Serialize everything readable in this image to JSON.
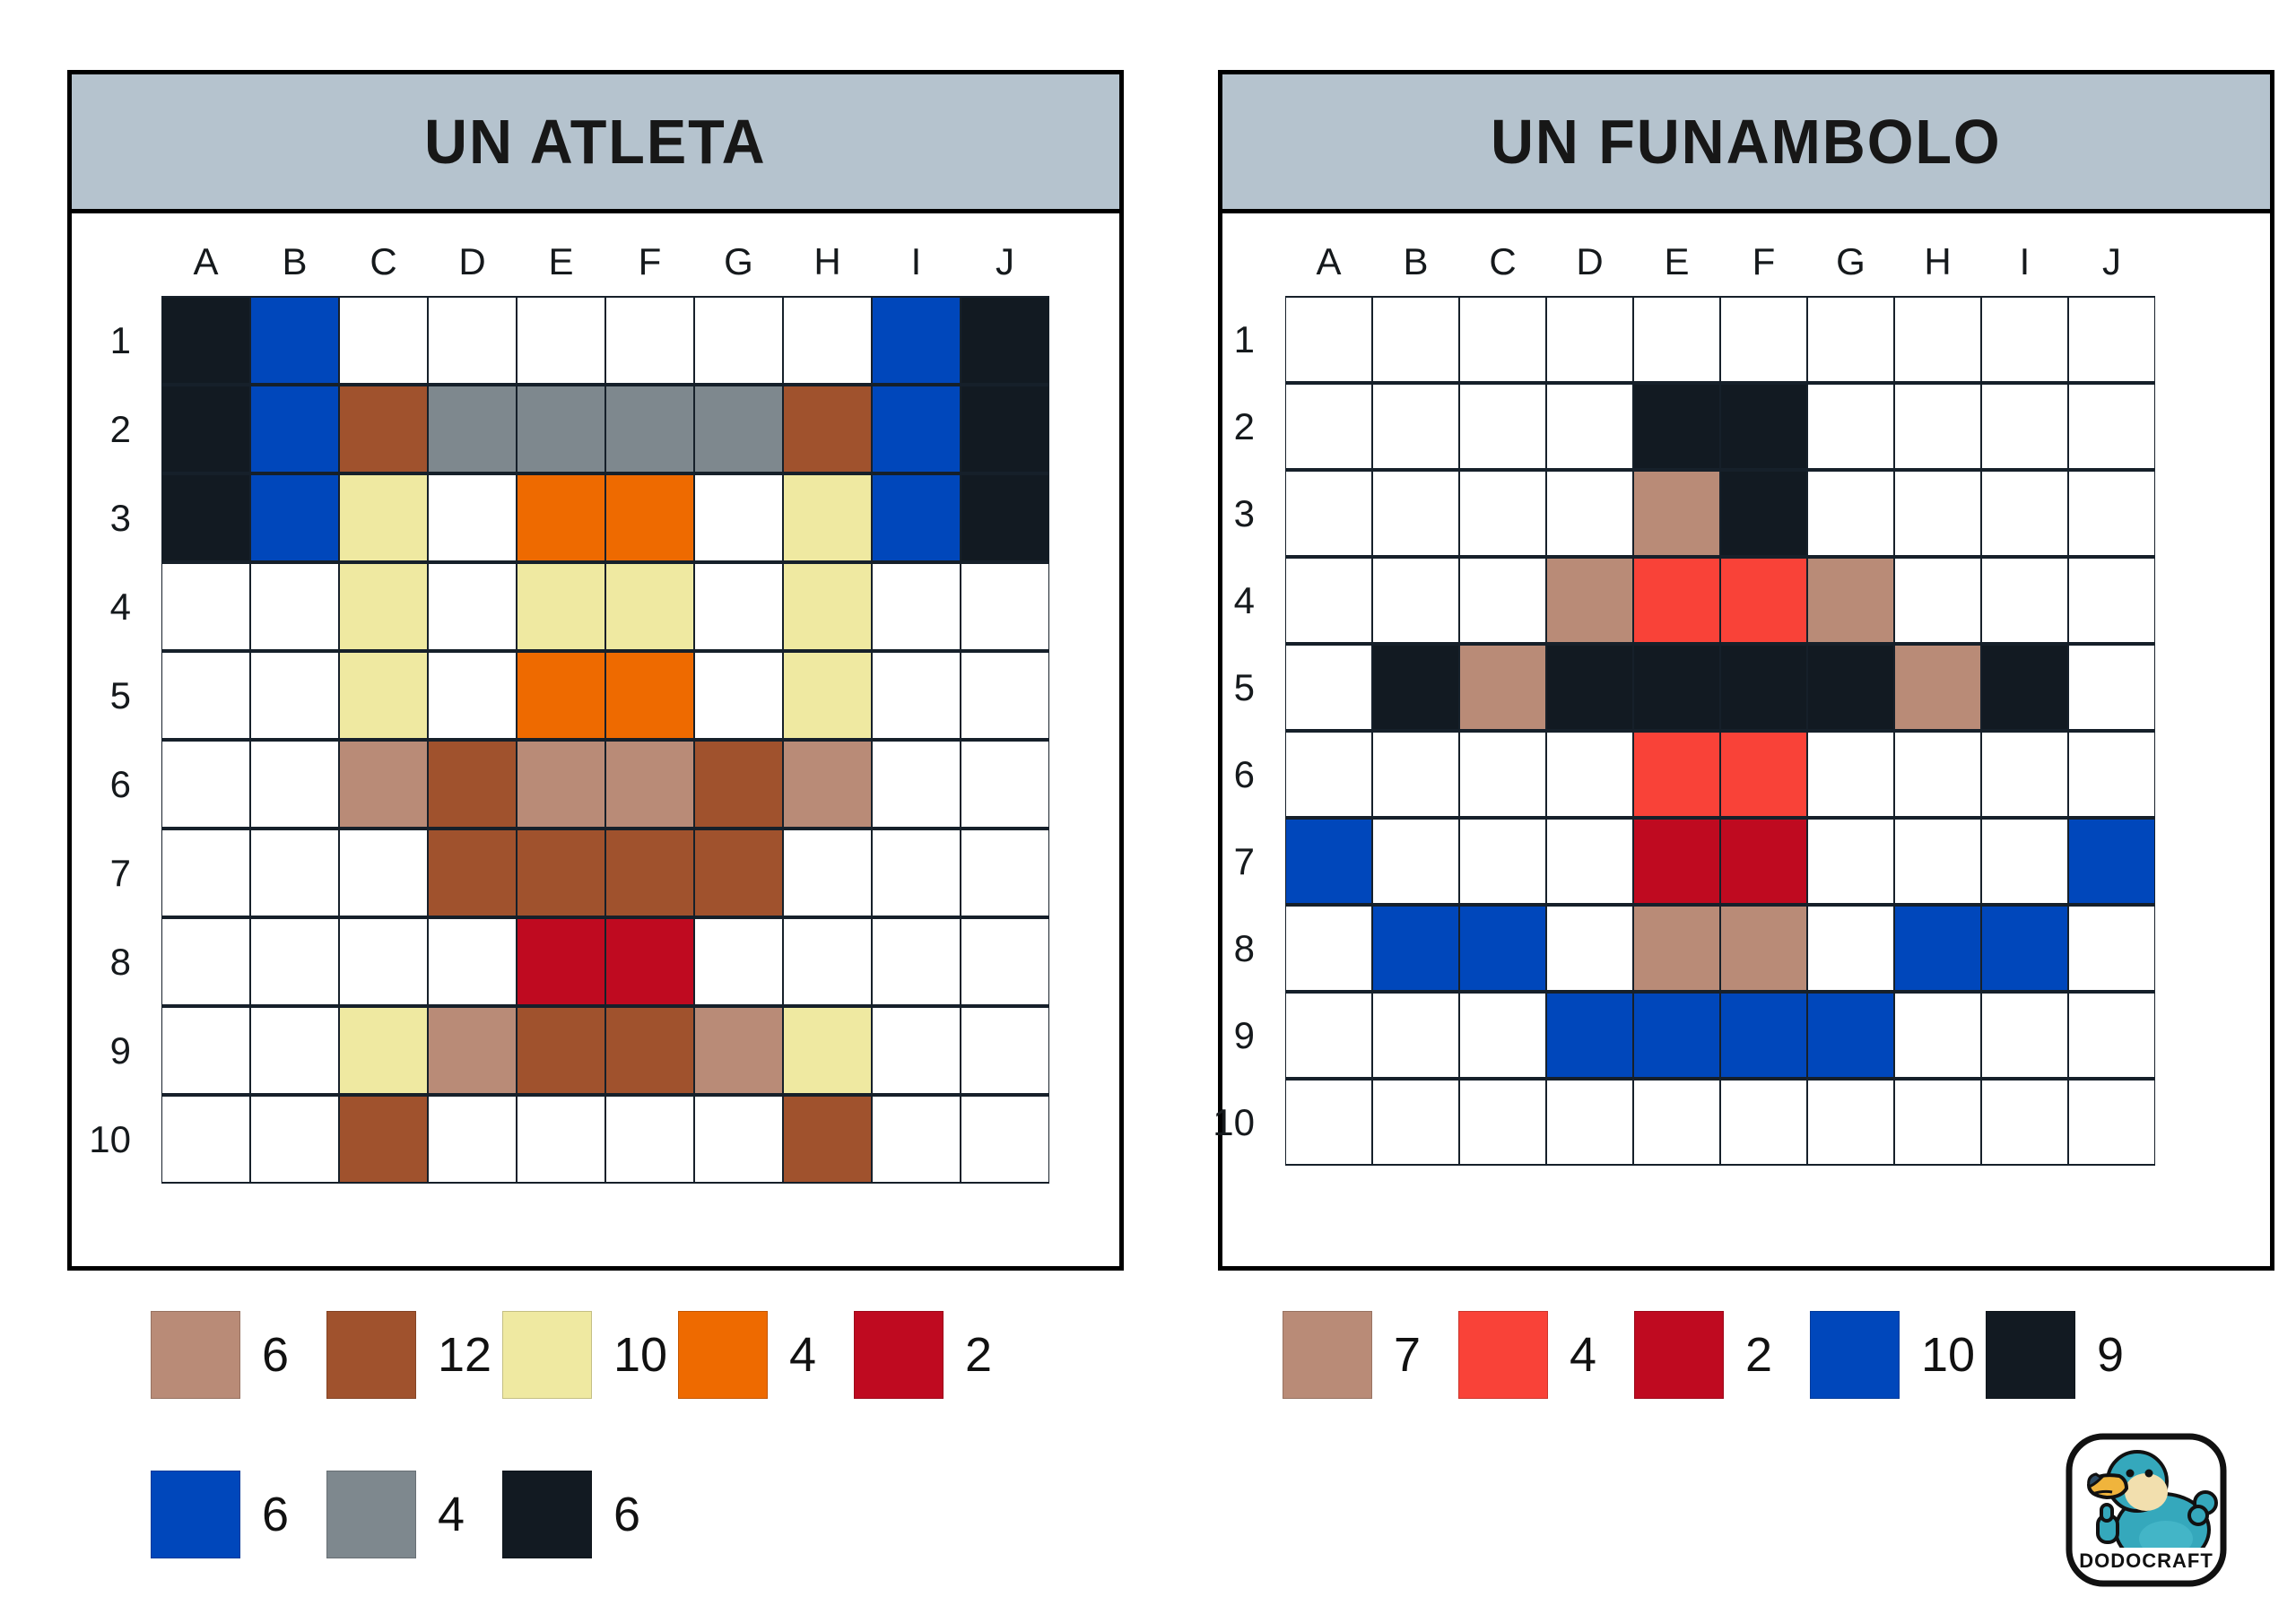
{
  "palette": {
    "grid_line": "#16202A",
    "title_bar_background": "#B5C3CE",
    "panel_border": "#000000",
    "codes": {
      ".": {
        "name": "white",
        "hex": "#FFFFFF"
      },
      "K": {
        "name": "black",
        "hex": "#121A22"
      },
      "B": {
        "name": "blue",
        "hex": "#0047BB"
      },
      "N": {
        "name": "brown",
        "hex": "#A0522D"
      },
      "G": {
        "name": "gray",
        "hex": "#7E888E"
      },
      "Y": {
        "name": "pale-yellow",
        "hex": "#EFE9A1"
      },
      "O": {
        "name": "orange",
        "hex": "#EE6A00"
      },
      "T": {
        "name": "rosy-brown",
        "hex": "#B98B77"
      },
      "R": {
        "name": "dark-red",
        "hex": "#BF0A20"
      },
      "F": {
        "name": "red",
        "hex": "#F94238"
      }
    }
  },
  "panels": [
    {
      "title": "UN ATLETA",
      "columns": [
        "A",
        "B",
        "C",
        "D",
        "E",
        "F",
        "G",
        "H",
        "I",
        "J"
      ],
      "rows": [
        "1",
        "2",
        "3",
        "4",
        "5",
        "6",
        "7",
        "8",
        "9",
        "10"
      ],
      "cells": [
        "KB......BK",
        "KBNGGGGNBK",
        "KBY.OO.YBK",
        "..Y.YY.Y..",
        "..Y.OO.Y..",
        "..TNTTNT..",
        "...NNNN...",
        "....RR....",
        "..YTNNTY..",
        "..N....N.."
      ],
      "legend": [
        [
          {
            "color": "T",
            "count": "6"
          },
          {
            "color": "N",
            "count": "12"
          },
          {
            "color": "Y",
            "count": "10"
          },
          {
            "color": "O",
            "count": "4"
          },
          {
            "color": "R",
            "count": "2"
          }
        ],
        [
          {
            "color": "B",
            "count": "6"
          },
          {
            "color": "G",
            "count": "4"
          },
          {
            "color": "K",
            "count": "6"
          }
        ]
      ]
    },
    {
      "title": "UN FUNAMBOLO",
      "columns": [
        "A",
        "B",
        "C",
        "D",
        "E",
        "F",
        "G",
        "H",
        "I",
        "J"
      ],
      "rows": [
        "1",
        "2",
        "3",
        "4",
        "5",
        "6",
        "7",
        "8",
        "9",
        "10"
      ],
      "cells": [
        "..........",
        "....KK....",
        "....TK....",
        "...TFFT...",
        ".KTKKKKTK.",
        "....FF....",
        "B...RR...B",
        ".BB.TT.BB.",
        "...BBBB...",
        ".........."
      ],
      "legend": [
        [
          {
            "color": "T",
            "count": "7"
          },
          {
            "color": "F",
            "count": "4"
          },
          {
            "color": "R",
            "count": "2"
          },
          {
            "color": "B",
            "count": "10"
          },
          {
            "color": "K",
            "count": "9"
          }
        ]
      ]
    }
  ],
  "logo": {
    "text": "DODOCRAFT"
  }
}
